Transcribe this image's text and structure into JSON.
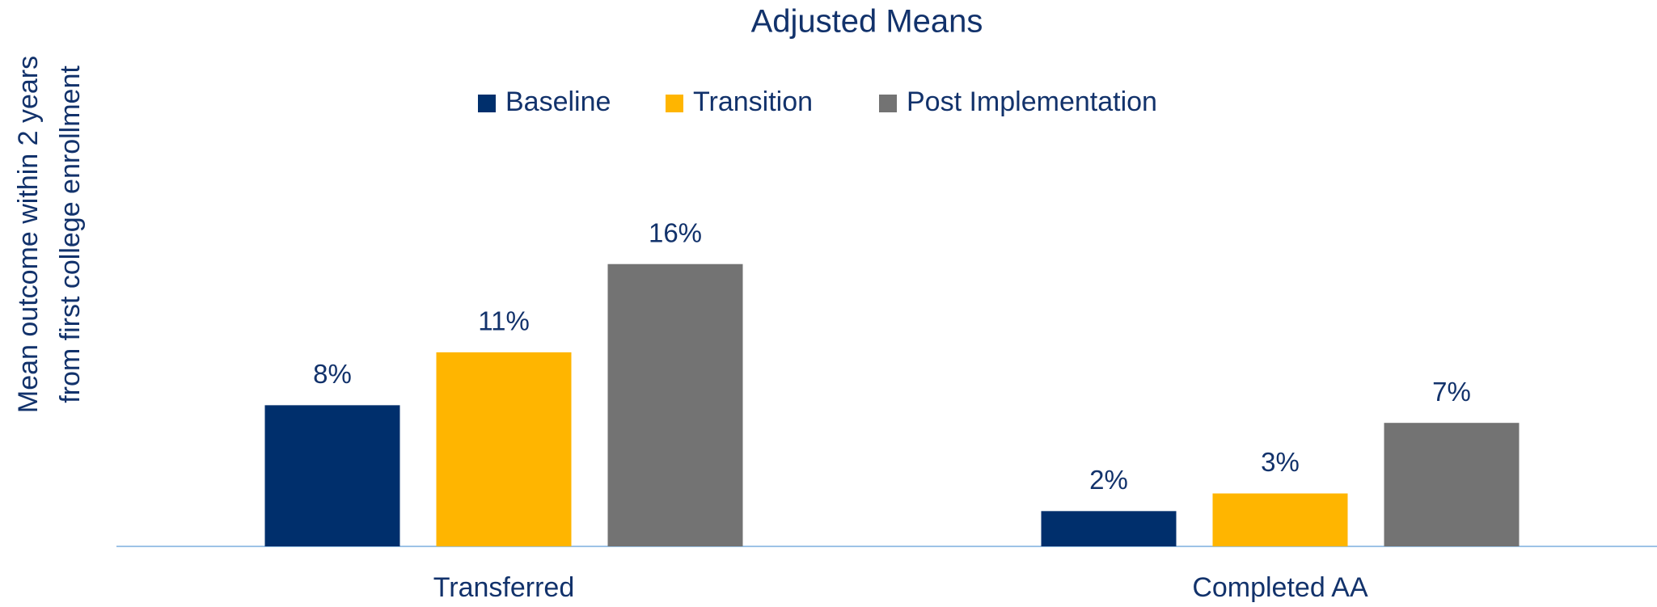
{
  "chart_data": {
    "type": "bar",
    "title": "Adjusted Means",
    "ylabel": [
      "Mean outcome within 2 years",
      "from first college enrollment"
    ],
    "categories": [
      "Transferred",
      "Completed AA"
    ],
    "series": [
      {
        "name": "Baseline",
        "color": "#002f6c",
        "values": [
          8,
          2
        ],
        "value_labels": [
          "8%",
          "2%"
        ]
      },
      {
        "name": "Transition",
        "color": "#ffb500",
        "values": [
          11,
          3
        ],
        "value_labels": [
          "11%",
          "3%"
        ]
      },
      {
        "name": "Post Implementation",
        "color": "#737373",
        "values": [
          16,
          7
        ],
        "value_labels": [
          "16%",
          "7%"
        ]
      }
    ]
  }
}
